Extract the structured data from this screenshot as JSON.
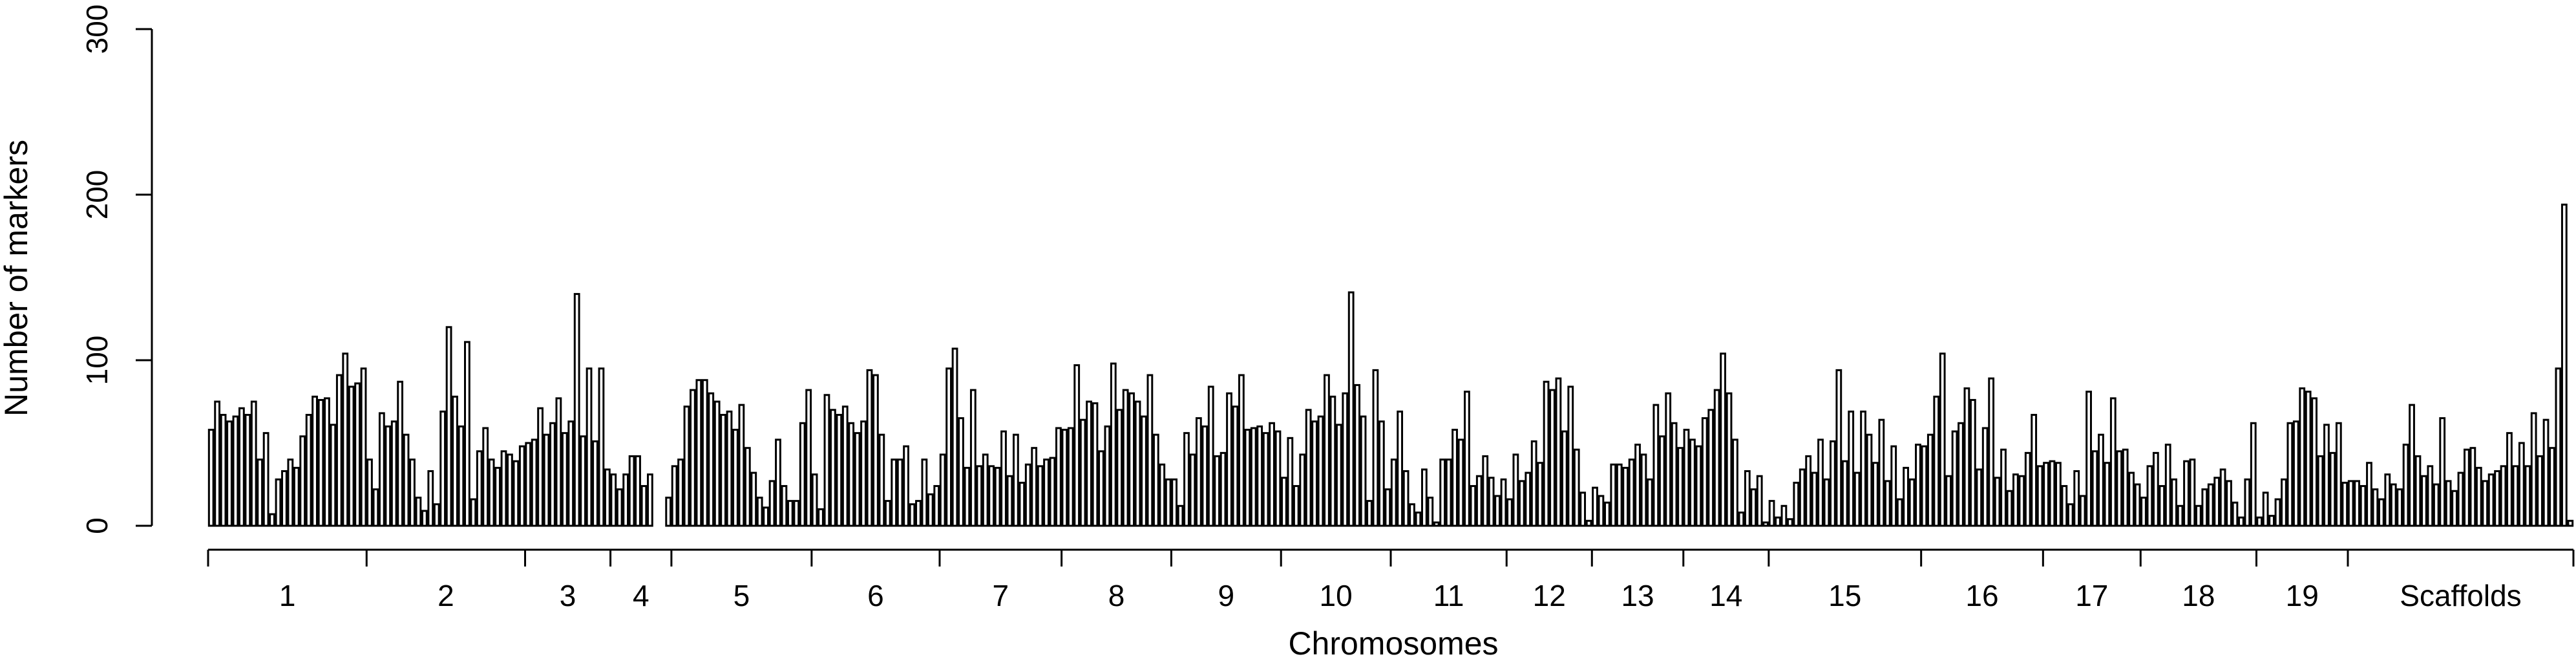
{
  "chart_data": {
    "type": "bar",
    "title": "",
    "xlabel": "Chromosomes",
    "ylabel": "Number of markers",
    "ylim": [
      0,
      300
    ],
    "yticks": [
      0,
      100,
      200,
      300
    ],
    "grid": false,
    "groups": [
      {
        "label": "1",
        "values": [
          58,
          75,
          67,
          63,
          66,
          71,
          67,
          75,
          40,
          56,
          7,
          28,
          33,
          40,
          35,
          54,
          67,
          78,
          76,
          77,
          61,
          91,
          104,
          84,
          86,
          95
        ]
      },
      {
        "label": "2",
        "values": [
          40,
          22,
          68,
          60,
          63,
          87,
          55,
          40,
          17,
          9,
          33,
          13,
          69,
          120,
          78,
          60,
          111,
          16,
          45,
          59,
          40,
          35,
          45,
          43,
          39,
          48
        ]
      },
      {
        "label": "3",
        "values": [
          50,
          52,
          71,
          55,
          62,
          77,
          56,
          63,
          140,
          54,
          95,
          51,
          95,
          34
        ]
      },
      {
        "label": "4",
        "values": [
          31,
          22,
          31,
          42,
          42,
          24,
          31,
          0,
          0,
          17
        ]
      },
      {
        "label": "5",
        "values": [
          36,
          40,
          72,
          82,
          88,
          88,
          80,
          75,
          67,
          69,
          58,
          73,
          47,
          32,
          17,
          11,
          27,
          52,
          24,
          15,
          15,
          62,
          82
        ]
      },
      {
        "label": "6",
        "values": [
          31,
          10,
          79,
          70,
          67,
          72,
          62,
          56,
          63,
          94,
          91,
          55,
          15,
          40,
          40,
          48,
          13,
          15,
          40,
          19,
          24
        ]
      },
      {
        "label": "7",
        "values": [
          43,
          95,
          107,
          65,
          35,
          82,
          36,
          43,
          36,
          35,
          57,
          30,
          55,
          26,
          37,
          47,
          36,
          40,
          41,
          59
        ]
      },
      {
        "label": "8",
        "values": [
          58,
          59,
          97,
          64,
          75,
          74,
          45,
          60,
          98,
          70,
          82,
          80,
          75,
          66,
          91,
          55,
          37,
          28
        ]
      },
      {
        "label": "9",
        "values": [
          28,
          12,
          56,
          43,
          65,
          60,
          84,
          42,
          44,
          80,
          72,
          91,
          58,
          59,
          60,
          56,
          62,
          57
        ]
      },
      {
        "label": "10",
        "values": [
          29,
          53,
          24,
          43,
          70,
          63,
          66,
          91,
          78,
          61,
          80,
          141,
          85,
          66,
          15,
          94,
          63,
          22
        ]
      },
      {
        "label": "11",
        "values": [
          40,
          69,
          33,
          13,
          8,
          34,
          17,
          2,
          40,
          40,
          58,
          52,
          81,
          24,
          30,
          42,
          29,
          18,
          28
        ]
      },
      {
        "label": "12",
        "values": [
          16,
          43,
          27,
          32,
          51,
          38,
          87,
          82,
          89,
          57,
          84,
          46,
          20,
          3
        ]
      },
      {
        "label": "13",
        "values": [
          23,
          18,
          14,
          37,
          37,
          35,
          40,
          49,
          43,
          28,
          73,
          54,
          80,
          62,
          47
        ]
      },
      {
        "label": "14",
        "values": [
          58,
          52,
          48,
          65,
          70,
          82,
          104,
          80,
          52,
          8,
          33,
          22,
          30,
          2
        ]
      },
      {
        "label": "15",
        "values": [
          15,
          5,
          12,
          4,
          26,
          34,
          42,
          32,
          52,
          28,
          51,
          94,
          39,
          69,
          32,
          69,
          55,
          38,
          64,
          27,
          48,
          16,
          35,
          28,
          49
        ]
      },
      {
        "label": "16",
        "values": [
          48,
          55,
          78,
          104,
          30,
          57,
          62,
          83,
          76,
          34,
          59,
          89,
          29,
          46,
          21,
          31,
          30,
          44,
          67,
          36
        ]
      },
      {
        "label": "17",
        "values": [
          38,
          39,
          38,
          24,
          13,
          33,
          18,
          81,
          45,
          55,
          38,
          77,
          45,
          46,
          32,
          25
        ]
      },
      {
        "label": "18",
        "values": [
          17,
          36,
          44,
          24,
          49,
          28,
          12,
          39,
          40,
          12,
          22,
          25,
          29,
          34,
          27,
          14,
          5,
          28,
          62
        ]
      },
      {
        "label": "19",
        "values": [
          5,
          20,
          6,
          16,
          28,
          62,
          63,
          83,
          81,
          77,
          42,
          61,
          44,
          62,
          26
        ]
      },
      {
        "label": "Scaffolds",
        "values": [
          27,
          27,
          24,
          38,
          22,
          16,
          31,
          25,
          22,
          49,
          73,
          42,
          30,
          36,
          25,
          65,
          27,
          21,
          32,
          46,
          47,
          35,
          27,
          31,
          33,
          36,
          56,
          36,
          50,
          36,
          68,
          42,
          64,
          47,
          95,
          194,
          3
        ]
      }
    ]
  }
}
